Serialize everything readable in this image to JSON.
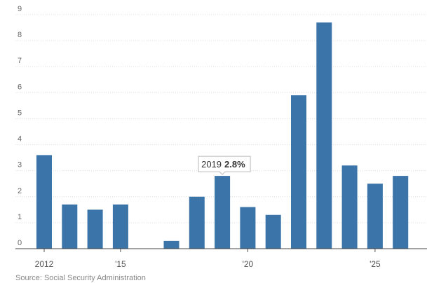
{
  "chart_data": {
    "type": "bar",
    "categories": [
      "2012",
      null,
      null,
      "'15",
      null,
      null,
      null,
      null,
      "'20",
      null,
      null,
      null,
      null,
      "'25",
      null
    ],
    "values": [
      3.6,
      1.7,
      1.5,
      1.7,
      0,
      0.3,
      2.0,
      2.8,
      1.6,
      1.3,
      5.9,
      8.7,
      3.2,
      2.5,
      2.8
    ],
    "value_labels": [
      null,
      null,
      null,
      null,
      null,
      null,
      null,
      "2.8%",
      null,
      null,
      null,
      null,
      null,
      null,
      null
    ],
    "tooltip_label": "2019",
    "color": "#3a74a9",
    "ylim": [
      0,
      9
    ],
    "yticks": [
      0,
      1,
      2,
      3,
      4,
      5,
      6,
      7,
      8,
      9
    ],
    "grid": true,
    "source": "Source: Social Security Administration"
  }
}
